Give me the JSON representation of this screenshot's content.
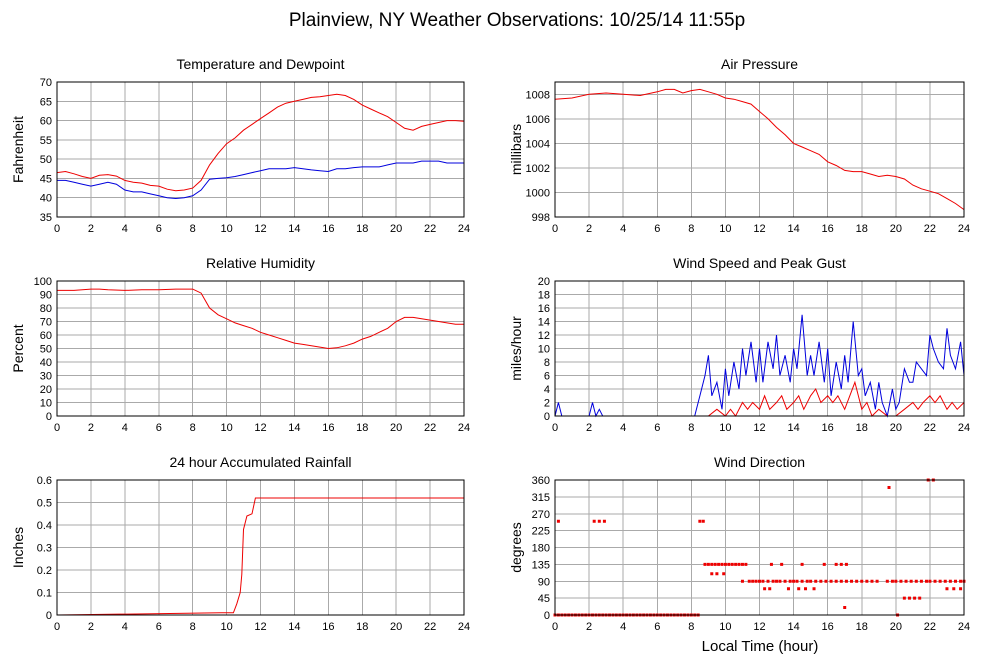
{
  "page": {
    "title": "Plainview, NY Weather Observations: 10/25/14 11:55p",
    "xaxis_label": "Local Time (hour)"
  },
  "colors": {
    "red": "#ee0000",
    "blue": "#0000dd",
    "grid": "#aaaaaa",
    "frame": "#000000"
  },
  "chart_data": [
    {
      "id": "temp",
      "type": "line",
      "title": "Temperature and Dewpoint",
      "xlabel": "",
      "ylabel": "Fahrenheit",
      "xlim": [
        0,
        24
      ],
      "ylim": [
        35,
        70
      ],
      "xticks": [
        0,
        2,
        4,
        6,
        8,
        10,
        12,
        14,
        16,
        18,
        20,
        22,
        24
      ],
      "yticks": [
        35,
        40,
        45,
        50,
        55,
        60,
        65,
        70
      ],
      "series": [
        {
          "color": "#ee0000",
          "x": [
            0,
            0.5,
            1,
            1.5,
            2,
            2.5,
            3,
            3.5,
            4,
            4.5,
            5,
            5.5,
            6,
            6.5,
            7,
            7.5,
            8,
            8.5,
            9,
            9.5,
            10,
            10.5,
            11,
            11.5,
            12,
            12.5,
            13,
            13.5,
            14,
            14.5,
            15,
            15.5,
            16,
            16.5,
            17,
            17.5,
            18,
            18.5,
            19,
            19.5,
            20,
            20.5,
            21,
            21.5,
            22,
            22.5,
            23,
            23.5,
            24
          ],
          "y": [
            46.5,
            46.8,
            46.2,
            45.5,
            45,
            45.8,
            46,
            45.6,
            44.5,
            44,
            43.8,
            43.2,
            43,
            42.2,
            41.8,
            42,
            42.5,
            44.5,
            48.5,
            51.5,
            54,
            55.5,
            57.5,
            59,
            60.5,
            62,
            63.5,
            64.5,
            65,
            65.5,
            66,
            66.2,
            66.5,
            66.8,
            66.5,
            65.5,
            64,
            63,
            62,
            61,
            59.5,
            58,
            57.5,
            58.5,
            59,
            59.5,
            60,
            60,
            59.8
          ]
        },
        {
          "color": "#0000dd",
          "x": [
            0,
            0.5,
            1,
            1.5,
            2,
            2.5,
            3,
            3.5,
            4,
            4.5,
            5,
            5.5,
            6,
            6.5,
            7,
            7.5,
            8,
            8.5,
            9,
            9.5,
            10,
            10.5,
            11,
            11.5,
            12,
            12.5,
            13,
            13.5,
            14,
            14.5,
            15,
            15.5,
            16,
            16.5,
            17,
            17.5,
            18,
            18.5,
            19,
            19.5,
            20,
            20.5,
            21,
            21.5,
            22,
            22.5,
            23,
            23.5,
            24
          ],
          "y": [
            44.5,
            44.5,
            44,
            43.5,
            43,
            43.5,
            44,
            43.5,
            42,
            41.5,
            41.5,
            41,
            40.5,
            40,
            39.8,
            40,
            40.5,
            42,
            44.8,
            45,
            45.2,
            45.5,
            46,
            46.5,
            47,
            47.5,
            47.5,
            47.5,
            47.8,
            47.5,
            47.2,
            47,
            46.8,
            47.5,
            47.5,
            47.8,
            48,
            48,
            48,
            48.5,
            49,
            49,
            49,
            49.5,
            49.5,
            49.5,
            49,
            49,
            49
          ]
        }
      ]
    },
    {
      "id": "pressure",
      "type": "line",
      "title": "Air Pressure",
      "xlabel": "",
      "ylabel": "millibars",
      "xlim": [
        0,
        24
      ],
      "ylim": [
        998,
        1009
      ],
      "xticks": [
        0,
        2,
        4,
        6,
        8,
        10,
        12,
        14,
        16,
        18,
        20,
        22,
        24
      ],
      "yticks": [
        998,
        1000,
        1002,
        1004,
        1006,
        1008
      ],
      "series": [
        {
          "color": "#ee0000",
          "x": [
            0,
            1,
            2,
            3,
            4,
            5,
            6,
            6.5,
            7,
            7.5,
            8,
            8.5,
            9,
            9.5,
            10,
            10.5,
            11,
            11.5,
            12,
            12.5,
            13,
            13.5,
            14,
            14.5,
            15,
            15.5,
            16,
            16.5,
            17,
            17.5,
            18,
            18.5,
            19,
            19.5,
            20,
            20.5,
            21,
            21.5,
            22,
            22.5,
            23,
            23.5,
            24
          ],
          "y": [
            1007.6,
            1007.7,
            1008,
            1008.1,
            1008,
            1007.9,
            1008.2,
            1008.4,
            1008.4,
            1008.1,
            1008.3,
            1008.4,
            1008.2,
            1008,
            1007.7,
            1007.6,
            1007.4,
            1007.2,
            1006.6,
            1006,
            1005.3,
            1004.7,
            1004,
            1003.7,
            1003.4,
            1003.1,
            1002.5,
            1002.2,
            1001.8,
            1001.7,
            1001.7,
            1001.5,
            1001.3,
            1001.4,
            1001.3,
            1001.1,
            1000.6,
            1000.3,
            1000.1,
            999.9,
            999.5,
            999.1,
            998.6
          ]
        }
      ]
    },
    {
      "id": "humidity",
      "type": "line",
      "title": "Relative Humidity",
      "xlabel": "",
      "ylabel": "Percent",
      "xlim": [
        0,
        24
      ],
      "ylim": [
        0,
        100
      ],
      "xticks": [
        0,
        2,
        4,
        6,
        8,
        10,
        12,
        14,
        16,
        18,
        20,
        22,
        24
      ],
      "yticks": [
        0,
        10,
        20,
        30,
        40,
        50,
        60,
        70,
        80,
        90,
        100
      ],
      "series": [
        {
          "color": "#ee0000",
          "x": [
            0,
            1,
            2,
            2.5,
            3,
            4,
            5,
            6,
            7,
            8,
            8.5,
            9,
            9.5,
            10,
            10.5,
            11,
            11.5,
            12,
            12.5,
            13,
            13.5,
            14,
            14.5,
            15,
            15.5,
            16,
            16.5,
            17,
            17.5,
            18,
            18.5,
            19,
            19.5,
            20,
            20.5,
            21,
            21.5,
            22,
            22.5,
            23,
            23.5,
            24
          ],
          "y": [
            93,
            93,
            94,
            94,
            93.5,
            93,
            93.5,
            93.5,
            94,
            94,
            91,
            80,
            75,
            72,
            69,
            67,
            65,
            62,
            60,
            58,
            56,
            54,
            53,
            52,
            51,
            50,
            50.5,
            52,
            54,
            57,
            59,
            62,
            65,
            70,
            73,
            73,
            72,
            71,
            70,
            69,
            68,
            68
          ]
        }
      ]
    },
    {
      "id": "wind",
      "type": "line",
      "title": "Wind Speed and Peak Gust",
      "xlabel": "",
      "ylabel": "miles/hour",
      "xlim": [
        0,
        24
      ],
      "ylim": [
        0,
        20
      ],
      "xticks": [
        0,
        2,
        4,
        6,
        8,
        10,
        12,
        14,
        16,
        18,
        20,
        22,
        24
      ],
      "yticks": [
        0,
        2,
        4,
        6,
        8,
        10,
        12,
        14,
        16,
        18,
        20
      ],
      "series": [
        {
          "color": "#0000dd",
          "x": [
            0,
            0.2,
            0.4,
            2,
            2.2,
            2.4,
            2.6,
            2.8,
            3,
            8.2,
            8.5,
            8.8,
            9,
            9.2,
            9.5,
            9.8,
            10,
            10.2,
            10.5,
            10.8,
            11,
            11.2,
            11.5,
            11.8,
            12,
            12.2,
            12.5,
            12.8,
            13,
            13.2,
            13.5,
            13.8,
            14,
            14.2,
            14.5,
            14.8,
            15,
            15.2,
            15.5,
            15.8,
            16,
            16.2,
            16.5,
            16.8,
            17,
            17.2,
            17.5,
            17.8,
            18,
            18.2,
            18.5,
            18.8,
            19,
            19.2,
            19.5,
            19.8,
            20,
            20.2,
            20.5,
            20.8,
            21,
            21.2,
            21.5,
            21.8,
            22,
            22.2,
            22.5,
            22.8,
            23,
            23.2,
            23.5,
            23.8,
            24
          ],
          "y": [
            0,
            2,
            0,
            0,
            2,
            0,
            1,
            0,
            0,
            0,
            3,
            6,
            9,
            3,
            5,
            1,
            7,
            3,
            8,
            4,
            10,
            6,
            11,
            5,
            10,
            5,
            11,
            7,
            12,
            6,
            9,
            5,
            10,
            7,
            15,
            6,
            9,
            6,
            11,
            5,
            10,
            3,
            8,
            4,
            9,
            5,
            14,
            6,
            7,
            3,
            5,
            1,
            5,
            2,
            0,
            4,
            1,
            2,
            7,
            5,
            5,
            8,
            7,
            6,
            12,
            10,
            8,
            7,
            13,
            9,
            7,
            11,
            6
          ]
        },
        {
          "color": "#ee0000",
          "x": [
            0,
            8.5,
            9,
            9.5,
            10,
            10.3,
            10.6,
            11,
            11.3,
            11.6,
            12,
            12.3,
            12.6,
            13,
            13.3,
            13.6,
            14,
            14.3,
            14.6,
            15,
            15.3,
            15.6,
            16,
            16.3,
            16.6,
            17,
            17.3,
            17.6,
            18,
            18.3,
            18.6,
            19,
            19.5,
            20,
            20.5,
            21,
            21.3,
            21.6,
            22,
            22.3,
            22.6,
            23,
            23.3,
            23.6,
            24
          ],
          "y": [
            0,
            0,
            0,
            1,
            0,
            1,
            0,
            2,
            1,
            2,
            1,
            3,
            1,
            2,
            3,
            1,
            2,
            3,
            1,
            3,
            4,
            2,
            3,
            2,
            3,
            1,
            3,
            5,
            1,
            2,
            0,
            1,
            0,
            0,
            1,
            2,
            1,
            2,
            3,
            2,
            3,
            1,
            2,
            1,
            2
          ]
        }
      ]
    },
    {
      "id": "rain",
      "type": "line",
      "title": "24 hour Accumulated Rainfall",
      "xlabel": "",
      "ylabel": "Inches",
      "xlim": [
        0,
        24
      ],
      "ylim": [
        0,
        0.6
      ],
      "xticks": [
        0,
        2,
        4,
        6,
        8,
        10,
        12,
        14,
        16,
        18,
        20,
        22,
        24
      ],
      "yticks": [
        0,
        0.1,
        0.2,
        0.3,
        0.4,
        0.5,
        0.6
      ],
      "series": [
        {
          "color": "#ee0000",
          "x": [
            0,
            9.7,
            10,
            10.4,
            10.6,
            10.8,
            10.9,
            11,
            11.2,
            11.5,
            11.7,
            12,
            24
          ],
          "y": [
            0,
            0.01,
            0.01,
            0.01,
            0.05,
            0.1,
            0.18,
            0.38,
            0.44,
            0.45,
            0.52,
            0.52,
            0.52
          ]
        }
      ]
    },
    {
      "id": "direction",
      "type": "scatter",
      "title": "Wind Direction",
      "xlabel": "Local Time (hour)",
      "ylabel": "degrees",
      "xlim": [
        0,
        24
      ],
      "ylim": [
        0,
        360
      ],
      "xticks": [
        0,
        2,
        4,
        6,
        8,
        10,
        12,
        14,
        16,
        18,
        20,
        22,
        24
      ],
      "yticks": [
        0,
        45,
        90,
        135,
        180,
        225,
        270,
        315,
        360
      ],
      "series": [
        {
          "color": "#ee0000",
          "x": [
            0,
            0.2,
            0.4,
            0.6,
            0.8,
            1,
            1.2,
            1.4,
            1.6,
            1.8,
            2,
            2.2,
            2.4,
            2.6,
            2.8,
            3,
            3.2,
            3.4,
            3.6,
            3.8,
            4,
            4.2,
            4.4,
            4.6,
            4.8,
            5,
            5.2,
            5.4,
            5.6,
            5.8,
            6,
            6.2,
            6.4,
            6.6,
            6.8,
            7,
            7.2,
            7.4,
            7.6,
            7.8,
            8,
            8.2,
            8.4,
            0.2,
            2.3,
            2.6,
            2.9,
            8.5,
            8.7,
            8.8,
            9,
            9.2,
            9.4,
            9.6,
            9.8,
            10,
            10.2,
            10.4,
            10.6,
            10.8,
            11,
            11.2,
            11.4,
            11.6,
            11.8,
            12,
            12.2,
            12.5,
            12.8,
            13,
            13.2,
            13.5,
            13.8,
            14,
            14.2,
            14.5,
            14.8,
            15,
            15.3,
            15.6,
            15.9,
            16.2,
            16.5,
            16.8,
            17.1,
            17.4,
            17.7,
            18,
            18.3,
            18.6,
            18.9,
            9.2,
            9.5,
            9.9,
            11,
            12.7,
            13.3,
            14.5,
            15.8,
            16.5,
            16.8,
            17.1,
            19.5,
            19.8,
            20,
            20.3,
            20.6,
            20.9,
            21.2,
            21.5,
            21.8,
            22,
            22.3,
            22.6,
            22.9,
            23.2,
            23.5,
            23.8,
            24,
            12.3,
            12.6,
            13.7,
            14.3,
            14.7,
            15.2,
            17,
            19.6,
            20.5,
            20.8,
            21.1,
            21.4,
            20.1,
            21.9,
            22.2,
            23,
            23.4,
            23.8
          ],
          "y": [
            0,
            0,
            0,
            0,
            0,
            0,
            0,
            0,
            0,
            0,
            0,
            0,
            0,
            0,
            0,
            0,
            0,
            0,
            0,
            0,
            0,
            0,
            0,
            0,
            0,
            0,
            0,
            0,
            0,
            0,
            0,
            0,
            0,
            0,
            0,
            0,
            0,
            0,
            0,
            0,
            0,
            0,
            0,
            250,
            250,
            250,
            250,
            250,
            250,
            135,
            135,
            135,
            135,
            135,
            135,
            135,
            135,
            135,
            135,
            135,
            135,
            135,
            90,
            90,
            90,
            90,
            90,
            90,
            90,
            90,
            90,
            90,
            90,
            90,
            90,
            90,
            90,
            90,
            90,
            90,
            90,
            90,
            90,
            90,
            90,
            90,
            90,
            90,
            90,
            90,
            90,
            110,
            110,
            110,
            90,
            135,
            135,
            135,
            135,
            135,
            135,
            135,
            90,
            90,
            90,
            90,
            90,
            90,
            90,
            90,
            90,
            90,
            90,
            90,
            90,
            90,
            90,
            90,
            90,
            70,
            70,
            70,
            70,
            70,
            70,
            20,
            340,
            45,
            45,
            45,
            45,
            0,
            360,
            360,
            70,
            70,
            70
          ]
        }
      ]
    }
  ]
}
